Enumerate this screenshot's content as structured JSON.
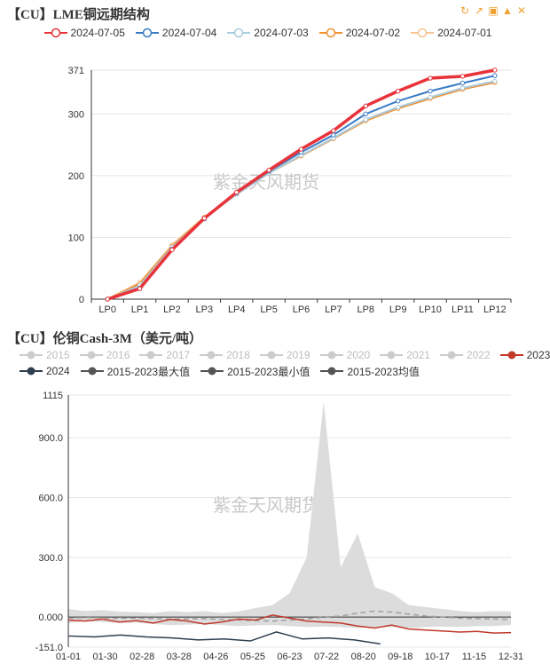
{
  "top_panel": {
    "title": "【CU】LME铜远期结构",
    "watermark": "紫金天风期货",
    "toolbox_icons": [
      "restore-icon",
      "share-icon",
      "save-image-icon",
      "bell-icon",
      "fullscreen-icon"
    ]
  },
  "bottom_panel": {
    "title": "【CU】伦铜Cash-3M（美元/吨）",
    "watermark": "紫金天风期货"
  },
  "chart_data": [
    {
      "type": "line",
      "title": "【CU】LME铜远期结构",
      "categories": [
        "LP0",
        "LP1",
        "LP2",
        "LP3",
        "LP4",
        "LP5",
        "LP6",
        "LP7",
        "LP8",
        "LP9",
        "LP10",
        "LP11",
        "LP12"
      ],
      "ylim": [
        0,
        371
      ],
      "y_ticks": [
        "0",
        "100",
        "200",
        "300",
        "371"
      ],
      "grid": "horizontal",
      "legend_position": "top",
      "series": [
        {
          "name": "2024-07-05",
          "color": "#e8333a",
          "values": [
            0,
            17,
            80,
            131,
            173,
            209,
            243,
            273,
            313,
            337,
            358,
            361,
            371
          ]
        },
        {
          "name": "2024-07-04",
          "color": "#3a7bc8",
          "values": [
            0,
            18,
            81,
            130,
            172,
            207,
            238,
            266,
            300,
            321,
            337,
            350,
            362
          ]
        },
        {
          "name": "2024-07-03",
          "color": "#a8cce0",
          "values": [
            0,
            22,
            84,
            131,
            170,
            204,
            233,
            261,
            291,
            311,
            327,
            342,
            353
          ]
        },
        {
          "name": "2024-07-02",
          "color": "#f09030",
          "values": [
            0,
            25,
            86,
            132,
            170,
            204,
            232,
            260,
            289,
            309,
            325,
            340,
            351
          ]
        },
        {
          "name": "2024-07-01",
          "color": "#f5c490",
          "values": [
            0,
            27,
            88,
            133,
            171,
            205,
            233,
            261,
            291,
            311,
            327,
            342,
            353
          ]
        }
      ]
    },
    {
      "type": "line",
      "title": "【CU】伦铜Cash-3M（美元/吨）",
      "x_ticks": [
        "01-01",
        "01-30",
        "02-28",
        "03-28",
        "04-26",
        "05-25",
        "06-23",
        "07-22",
        "08-20",
        "09-18",
        "10-17",
        "11-15",
        "12-31"
      ],
      "ylim": [
        -151,
        1115
      ],
      "y_ticks": [
        "-151.0",
        "0.000",
        "300.0",
        "600.0",
        "900.0",
        "1115"
      ],
      "grid": "horizontal",
      "legend_position": "top",
      "legend": [
        {
          "name": "2015",
          "color": "#cccccc",
          "active": false
        },
        {
          "name": "2016",
          "color": "#cccccc",
          "active": false
        },
        {
          "name": "2017",
          "color": "#cccccc",
          "active": false
        },
        {
          "name": "2018",
          "color": "#cccccc",
          "active": false
        },
        {
          "name": "2019",
          "color": "#cccccc",
          "active": false
        },
        {
          "name": "2020",
          "color": "#cccccc",
          "active": false
        },
        {
          "name": "2021",
          "color": "#cccccc",
          "active": false
        },
        {
          "name": "2022",
          "color": "#cccccc",
          "active": false
        },
        {
          "name": "2023",
          "color": "#c0392b",
          "active": true
        },
        {
          "name": "2024",
          "color": "#2e3f50",
          "active": true
        },
        {
          "name": "2015-2023最大值",
          "color": "#555555",
          "active": true
        },
        {
          "name": "2015-2023最小值",
          "color": "#555555",
          "active": true
        },
        {
          "name": "2015-2023均值",
          "color": "#555555",
          "active": true
        }
      ],
      "series": [
        {
          "name": "2015-2023最大值",
          "color": "#d9d9d9",
          "fill": true,
          "values": [
            40,
            30,
            35,
            28,
            25,
            20,
            30,
            25,
            30,
            20,
            28,
            45,
            60,
            120,
            300,
            1080,
            250,
            420,
            150,
            120,
            60,
            50,
            40,
            30,
            25,
            30,
            28
          ]
        },
        {
          "name": "2015-2023最小值",
          "color": "#d9d9d9",
          "fill": true,
          "values": [
            -30,
            -20,
            -25,
            -30,
            -28,
            -35,
            -40,
            -38,
            -35,
            -40,
            -45,
            -42,
            -40,
            -45,
            -50,
            -48,
            -50,
            -55,
            -52,
            -50,
            -55,
            -50,
            -48,
            -50,
            -45,
            -45,
            -40
          ]
        },
        {
          "name": "2015-2023均值",
          "color": "#9e9e9e",
          "dashed": true,
          "values": [
            -5,
            -3,
            -4,
            -6,
            -5,
            -8,
            -10,
            -9,
            -8,
            -12,
            -15,
            -18,
            -20,
            -15,
            -10,
            0,
            5,
            20,
            30,
            25,
            15,
            5,
            0,
            -5,
            -8,
            -10,
            -12
          ]
        },
        {
          "name": "2023",
          "color": "#c0392b",
          "values": [
            -15,
            -20,
            -10,
            -25,
            -18,
            -30,
            -12,
            -20,
            -35,
            -25,
            -10,
            -15,
            10,
            -5,
            -20,
            -25,
            -30,
            -45,
            -55,
            -40,
            -60,
            -65,
            -70,
            -75,
            -72,
            -80,
            -78
          ]
        },
        {
          "name": "2024",
          "color": "#2e3f50",
          "values": [
            -95,
            -100,
            -90,
            -100,
            -105,
            -115,
            -110,
            -120,
            -75,
            -110,
            -105,
            -115,
            -135
          ]
        }
      ]
    }
  ]
}
